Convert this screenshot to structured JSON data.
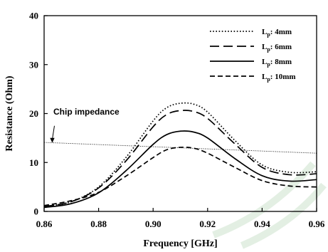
{
  "chart_data": {
    "type": "line",
    "xlabel": "Frequency [GHz]",
    "ylabel": "Resistance (Ohm)",
    "xlim": [
      0.86,
      0.96
    ],
    "ylim": [
      0,
      40
    ],
    "xticks": [
      "0.86",
      "0.88",
      "0.90",
      "0.92",
      "0.94",
      "0.96"
    ],
    "yticks": [
      "0",
      "10",
      "20",
      "30",
      "40"
    ],
    "grid": false,
    "legend": "top-right",
    "annotation": {
      "text": "Chip impedance",
      "target": {
        "x": 0.863,
        "y": 14.0
      }
    },
    "reference_line": {
      "style": "dotted-thin",
      "points": [
        [
          0.86,
          14.1
        ],
        [
          0.96,
          11.9
        ]
      ]
    },
    "series": [
      {
        "name_prefix": "L",
        "name_sub": "p",
        "name_suffix": ": 4mm",
        "style": "dotted",
        "points": [
          [
            0.86,
            1.0
          ],
          [
            0.87,
            2.0
          ],
          [
            0.88,
            5.0
          ],
          [
            0.89,
            11.0
          ],
          [
            0.9,
            18.5
          ],
          [
            0.905,
            21.2
          ],
          [
            0.91,
            22.1
          ],
          [
            0.915,
            21.9
          ],
          [
            0.92,
            20.3
          ],
          [
            0.93,
            14.5
          ],
          [
            0.94,
            9.5
          ],
          [
            0.95,
            8.0
          ],
          [
            0.96,
            8.1
          ]
        ]
      },
      {
        "name_prefix": "L",
        "name_sub": "p",
        "name_suffix": ": 6mm",
        "style": "long-dash",
        "points": [
          [
            0.86,
            1.0
          ],
          [
            0.87,
            2.0
          ],
          [
            0.88,
            4.8
          ],
          [
            0.89,
            10.3
          ],
          [
            0.9,
            17.3
          ],
          [
            0.905,
            19.8
          ],
          [
            0.91,
            20.6
          ],
          [
            0.915,
            20.4
          ],
          [
            0.92,
            19.0
          ],
          [
            0.93,
            13.8
          ],
          [
            0.94,
            9.0
          ],
          [
            0.95,
            7.5
          ],
          [
            0.96,
            7.7
          ]
        ]
      },
      {
        "name_prefix": "L",
        "name_sub": "p",
        "name_suffix": ": 8mm",
        "style": "solid",
        "points": [
          [
            0.86,
            0.8
          ],
          [
            0.87,
            1.6
          ],
          [
            0.88,
            3.8
          ],
          [
            0.89,
            8.3
          ],
          [
            0.9,
            13.7
          ],
          [
            0.905,
            15.7
          ],
          [
            0.91,
            16.4
          ],
          [
            0.915,
            16.2
          ],
          [
            0.92,
            15.0
          ],
          [
            0.93,
            10.8
          ],
          [
            0.94,
            7.3
          ],
          [
            0.95,
            6.2
          ],
          [
            0.96,
            6.5
          ]
        ]
      },
      {
        "name_prefix": "L",
        "name_sub": "p",
        "name_suffix": ": 10mm",
        "style": "dashed",
        "points": [
          [
            0.86,
            1.2
          ],
          [
            0.87,
            2.2
          ],
          [
            0.88,
            3.9
          ],
          [
            0.89,
            7.2
          ],
          [
            0.9,
            11.0
          ],
          [
            0.905,
            12.6
          ],
          [
            0.91,
            13.1
          ],
          [
            0.915,
            12.9
          ],
          [
            0.92,
            11.9
          ],
          [
            0.93,
            9.0
          ],
          [
            0.94,
            6.3
          ],
          [
            0.95,
            5.2
          ],
          [
            0.96,
            5.0
          ]
        ]
      }
    ]
  }
}
